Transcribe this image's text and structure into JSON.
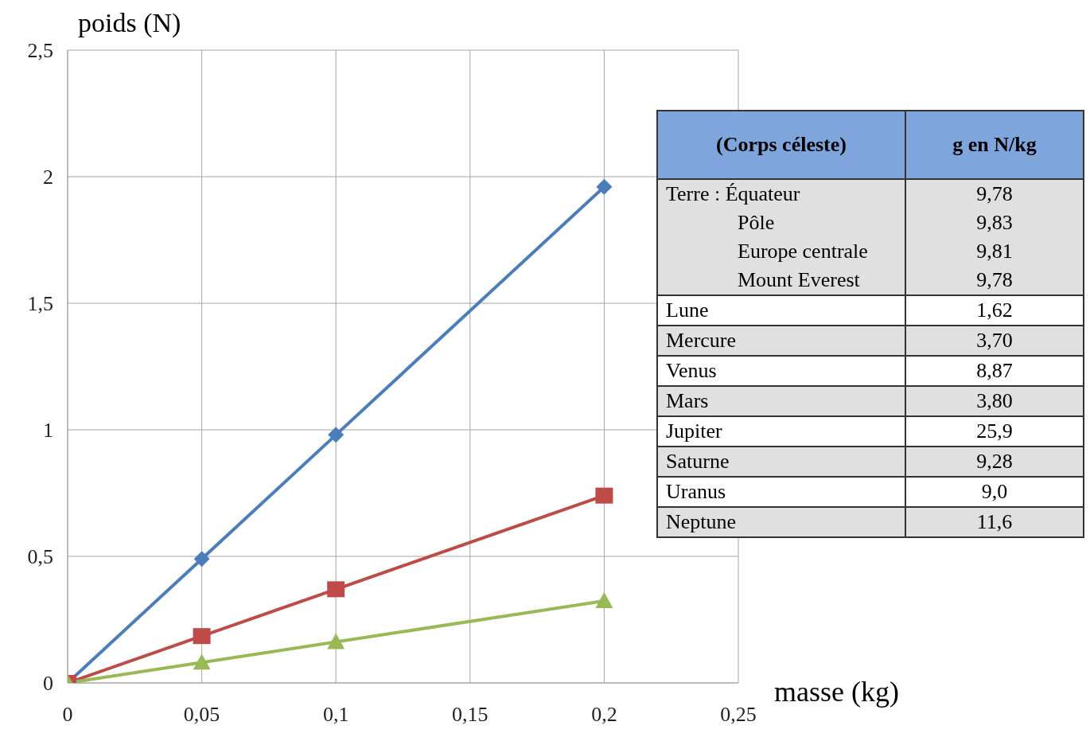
{
  "chart_data": [
    {
      "type": "line",
      "xlabel": "masse (kg)",
      "ylabel": "poids (N)",
      "x": [
        0,
        0.05,
        0.1,
        0.2
      ],
      "series": [
        {
          "color": "#4a7ebb",
          "marker": "diamond",
          "values": [
            0,
            0.49,
            0.98,
            1.96
          ]
        },
        {
          "color": "#be4b48",
          "marker": "square",
          "values": [
            0,
            0.185,
            0.37,
            0.74
          ]
        },
        {
          "color": "#98b954",
          "marker": "triangle",
          "values": [
            0,
            0.081,
            0.162,
            0.324
          ]
        }
      ],
      "xlim": [
        0,
        0.25
      ],
      "xticks": [
        0,
        {
          "value": 0.05,
          "label": "0,05"
        },
        {
          "value": 0.1,
          "label": "0,1"
        },
        {
          "value": 0.15,
          "label": "0,15"
        },
        {
          "value": 0.2,
          "label": "0,2"
        },
        {
          "value": 0.25,
          "label": "0,25"
        }
      ],
      "ylim": [
        0,
        2.5
      ],
      "yticks": [
        0,
        {
          "value": 0.5,
          "label": "0,5"
        },
        1,
        {
          "value": 1.5,
          "label": "1,5"
        },
        2,
        {
          "value": 2.5,
          "label": "2,5"
        }
      ],
      "grid": true,
      "line_style": "solid"
    },
    {
      "type": "other",
      "annotations": [
        "(Corps céleste)",
        "g en N/kg"
      ],
      "categories": [
        "Terre : Équateur",
        "Pôle",
        "Europe centrale",
        "Mount Everest",
        "Lune",
        "Mercure",
        "Venus",
        "Mars",
        "Jupiter",
        "Saturne",
        "Uranus",
        "Neptune"
      ],
      "value_labels": [
        "9,78",
        "9,83",
        "9,81",
        "9,78",
        "1,62",
        "3,70",
        "8,87",
        "3,80",
        "25,9",
        "9,28",
        "9,0",
        "11,6"
      ]
    }
  ]
}
